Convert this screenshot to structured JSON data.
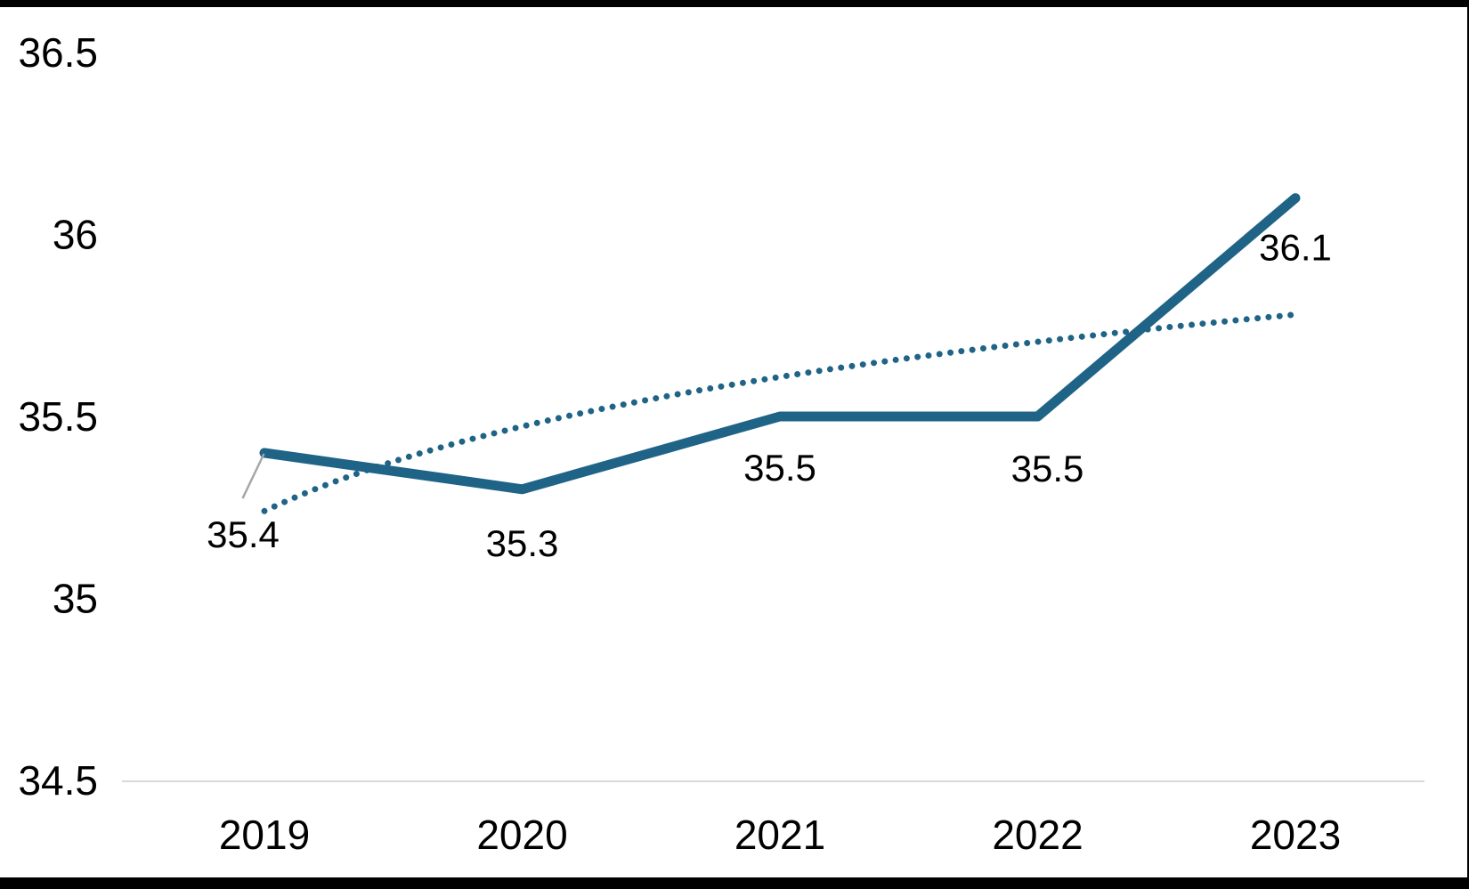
{
  "chart_data": {
    "type": "line",
    "title": "",
    "xlabel": "",
    "ylabel": "",
    "categories": [
      "2019",
      "2020",
      "2021",
      "2022",
      "2023"
    ],
    "series": [
      {
        "name": "main-series",
        "style": "solid",
        "values": [
          35.4,
          35.3,
          35.5,
          35.5,
          36.1
        ],
        "data_labels": [
          "35.4",
          "35.3",
          "35.5",
          "35.5",
          "36.1"
        ]
      },
      {
        "name": "trendline",
        "style": "dotted",
        "shape": "logarithmic",
        "values": [
          35.24,
          35.48,
          35.61,
          35.71,
          35.78
        ]
      }
    ],
    "ylim": [
      34.5,
      36.5
    ],
    "yticks": [
      {
        "v": 34.5,
        "label": "34.5"
      },
      {
        "v": 35.0,
        "label": "35"
      },
      {
        "v": 35.5,
        "label": "35.5"
      },
      {
        "v": 36.0,
        "label": "36"
      },
      {
        "v": 36.5,
        "label": "36.5"
      }
    ],
    "grid": false,
    "legend": false,
    "colors": {
      "line": "#1F6487",
      "trend": "#1F6487",
      "axis_line": "#D9D9D9",
      "label_text": "#000000",
      "leader_line": "#A6A6A6",
      "frame": "#000000",
      "background": "#FFFFFF"
    }
  }
}
